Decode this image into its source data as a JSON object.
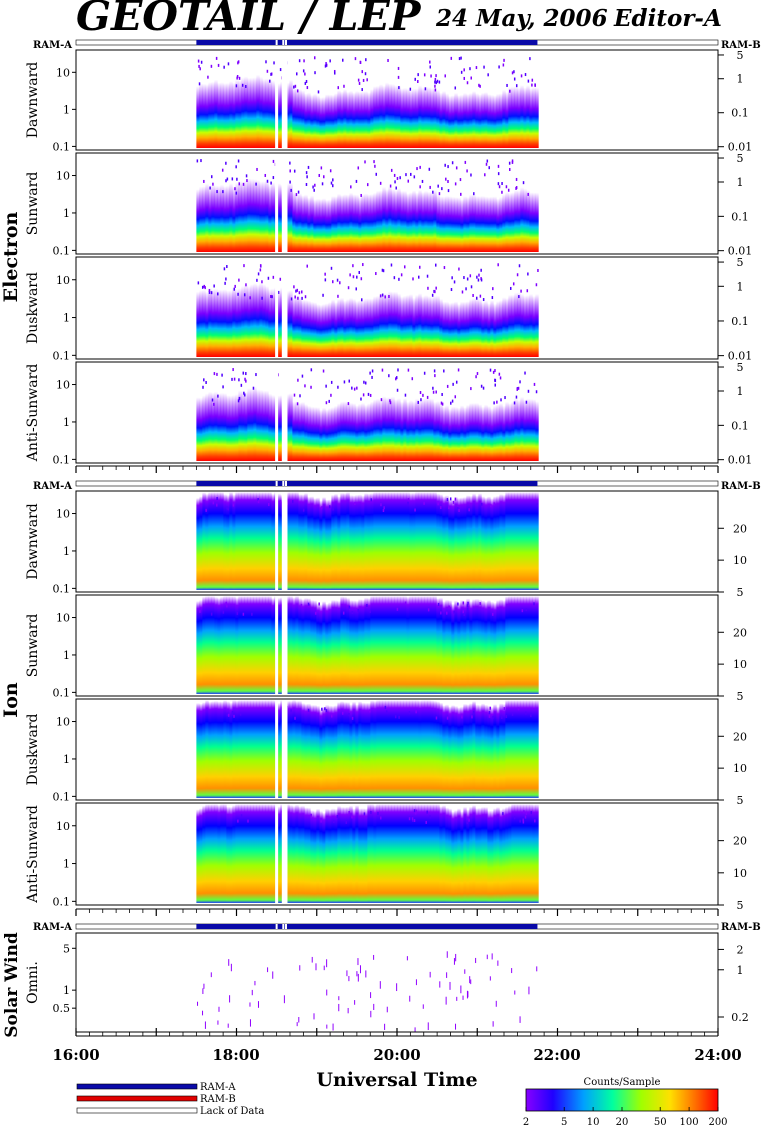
{
  "header": {
    "title": "GEOTAIL / LEP",
    "date": "24 May, 2006",
    "editor": "Editor-A"
  },
  "groups": [
    {
      "name": "Electron",
      "ram_a": "RAM-A",
      "ram_b": "RAM-B"
    },
    {
      "name": "Ion",
      "ram_a": "RAM-A",
      "ram_b": "RAM-B"
    },
    {
      "name": "Solar Wind",
      "ram_a": "RAM-A",
      "ram_b": "RAM-B"
    }
  ],
  "chart_data": {
    "type": "heatmap",
    "xlabel": "Universal Time",
    "x_ticks": [
      "16:00",
      "18:00",
      "20:00",
      "22:00",
      "24:00"
    ],
    "xlim": [
      "16:00",
      "24:00"
    ],
    "data_coverage": [
      "17:30",
      "21:45"
    ],
    "data_gaps": [
      "18:30",
      "18:35",
      "18:37"
    ],
    "panels": [
      {
        "group": "Electron",
        "label": "Dawnward",
        "left_ticks": [
          "10",
          "1",
          "0.1"
        ],
        "left_scale": "log",
        "left_range": [
          0.08,
          40
        ],
        "right_ticks": [
          "5",
          "1",
          "0.1",
          "0.01"
        ],
        "right_scale": "log",
        "right_range": [
          0.008,
          7
        ]
      },
      {
        "group": "Electron",
        "label": "Sunward",
        "left_ticks": [
          "10",
          "1",
          "0.1"
        ],
        "left_scale": "log",
        "left_range": [
          0.08,
          40
        ],
        "right_ticks": [
          "5",
          "1",
          "0.1",
          "0.01"
        ],
        "right_scale": "log",
        "right_range": [
          0.008,
          7
        ]
      },
      {
        "group": "Electron",
        "label": "Duskward",
        "left_ticks": [
          "10",
          "1",
          "0.1"
        ],
        "left_scale": "log",
        "left_range": [
          0.08,
          40
        ],
        "right_ticks": [
          "5",
          "1",
          "0.1",
          "0.01"
        ],
        "right_scale": "log",
        "right_range": [
          0.008,
          7
        ]
      },
      {
        "group": "Electron",
        "label": "Anti-Sunward",
        "left_ticks": [
          "10",
          "1",
          "0.1"
        ],
        "left_scale": "log",
        "left_range": [
          0.08,
          40
        ],
        "right_ticks": [
          "5",
          "1",
          "0.1",
          "0.01"
        ],
        "right_scale": "log",
        "right_range": [
          0.008,
          7
        ]
      },
      {
        "group": "Ion",
        "label": "Dawnward",
        "left_ticks": [
          "10",
          "1",
          "0.1"
        ],
        "left_scale": "log",
        "left_range": [
          0.08,
          40
        ],
        "right_ticks": [
          "20",
          "10",
          "5"
        ],
        "right_scale": "log",
        "right_range": [
          5,
          45
        ]
      },
      {
        "group": "Ion",
        "label": "Sunward",
        "left_ticks": [
          "10",
          "1",
          "0.1"
        ],
        "left_scale": "log",
        "left_range": [
          0.08,
          40
        ],
        "right_ticks": [
          "20",
          "10",
          "5"
        ],
        "right_scale": "log",
        "right_range": [
          5,
          45
        ]
      },
      {
        "group": "Ion",
        "label": "Duskward",
        "left_ticks": [
          "10",
          "1",
          "0.1"
        ],
        "left_scale": "log",
        "left_range": [
          0.08,
          40
        ],
        "right_ticks": [
          "20",
          "10",
          "5"
        ],
        "right_scale": "log",
        "right_range": [
          5,
          45
        ]
      },
      {
        "group": "Ion",
        "label": "Anti-Sunward",
        "left_ticks": [
          "10",
          "1",
          "0.1"
        ],
        "left_scale": "log",
        "left_range": [
          0.08,
          40
        ],
        "right_ticks": [
          "20",
          "10",
          "5"
        ],
        "right_scale": "log",
        "right_range": [
          5,
          45
        ]
      },
      {
        "group": "Solar Wind",
        "label": "Omni.",
        "left_ticks": [
          "5",
          "1",
          "0.5"
        ],
        "left_scale": "log",
        "left_range": [
          0.2,
          9
        ],
        "right_ticks": [
          "2",
          "1",
          "0.2"
        ],
        "right_scale": "log",
        "right_range": [
          0.12,
          3.5
        ]
      }
    ],
    "legend": {
      "items": [
        {
          "label": "RAM-A",
          "color": "#0a0aa8"
        },
        {
          "label": "RAM-B",
          "color": "#e00000"
        },
        {
          "label": "Lack of Data",
          "color": "#ffffff"
        }
      ]
    },
    "colorbar": {
      "title": "Counts/Sample",
      "scale": "log",
      "range": [
        2,
        200
      ],
      "ticks": [
        "2",
        "5",
        "10",
        "20",
        "50",
        "100",
        "200"
      ],
      "colors": [
        "#8800ff",
        "#0000ff",
        "#00c8ff",
        "#00ff80",
        "#80ff00",
        "#ffff00",
        "#ff8000",
        "#ff0000"
      ]
    }
  }
}
